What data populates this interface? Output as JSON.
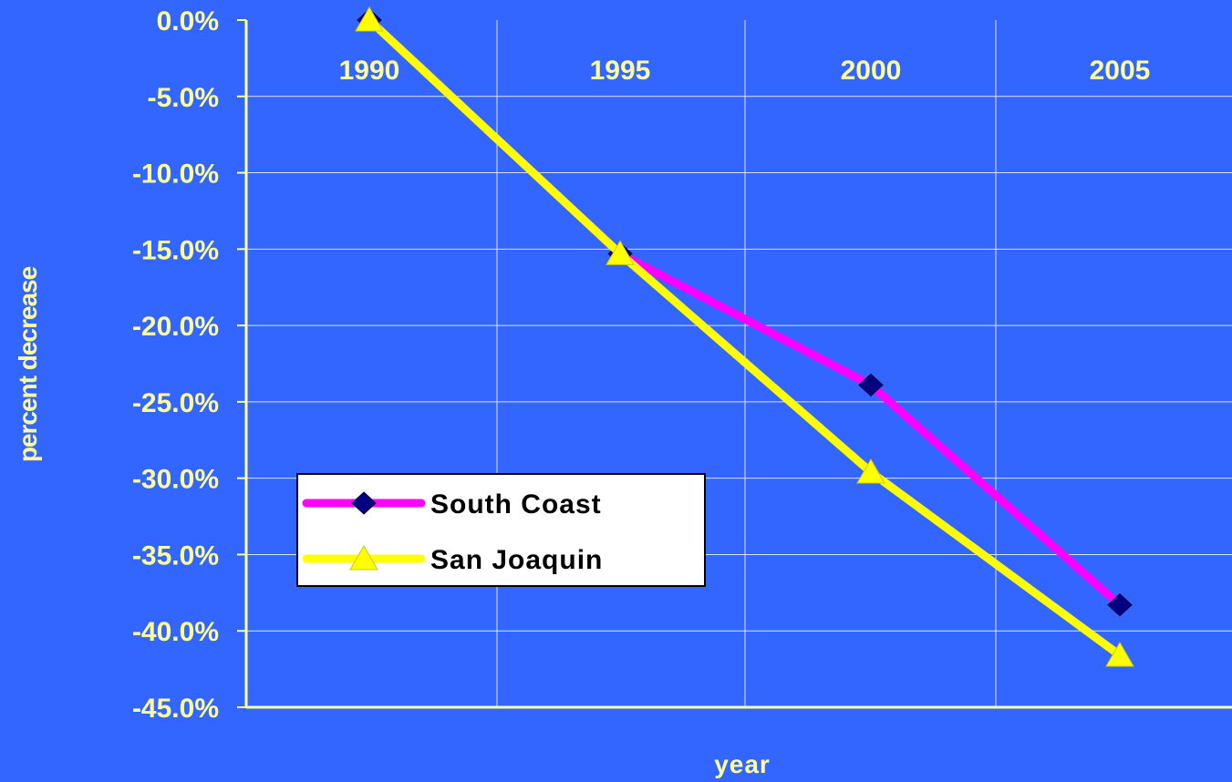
{
  "chart_data": {
    "type": "line",
    "title": "",
    "xlabel": "year",
    "ylabel": "percent decrease",
    "categories": [
      "1990",
      "1995",
      "2000",
      "2005"
    ],
    "yticks": [
      "0.0%",
      "-5.0%",
      "-10.0%",
      "-15.0%",
      "-20.0%",
      "-25.0%",
      "-30.0%",
      "-35.0%",
      "-40.0%",
      "-45.0%"
    ],
    "ylim": [
      -45,
      0
    ],
    "grid": true,
    "legend_position": "center-left",
    "series": [
      {
        "name": "South Coast",
        "values": [
          0.0,
          -15.3,
          -23.9,
          -38.3
        ],
        "color": "#ff00ff",
        "marker": "diamond",
        "marker_color": "#000080"
      },
      {
        "name": "San Joaquin",
        "values": [
          0.0,
          -15.3,
          -29.6,
          -41.6
        ],
        "color": "#ffff00",
        "marker": "triangle",
        "marker_color": "#ffff00"
      }
    ]
  },
  "colors": {
    "background": "#3366ff",
    "axis_text": "#ffff99",
    "axis_line": "#ffff99",
    "grid": "#d8e0ff"
  }
}
